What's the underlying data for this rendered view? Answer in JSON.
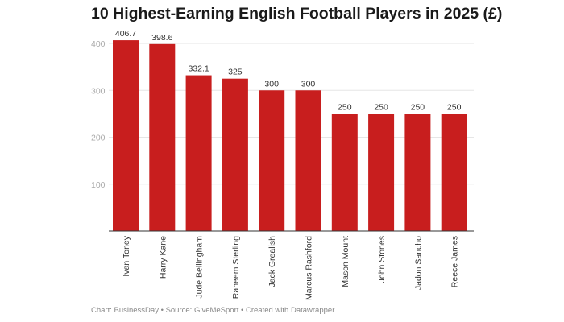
{
  "title": "10 Highest-Earning English Football Players in 2025 (£)",
  "footer": {
    "credit": "Chart: BusinessDay",
    "source": "Source: GiveMeSport",
    "tool": "Created with Datawrapper",
    "separator": " • "
  },
  "colors": {
    "bar": "#c81e1e",
    "grid": "#e6e6e6",
    "axis": "#333333"
  },
  "chart_data": {
    "type": "bar",
    "title": "10 Highest-Earning English Football Players in 2025 (£)",
    "xlabel": "",
    "ylabel": "",
    "categories": [
      "Ivan Toney",
      "Harry Kane",
      "Jude Bellingham",
      "Raheem Sterling",
      "Jack Grealish",
      "Marcus Rashford",
      "Mason Mount",
      "John Stones",
      "Jadon Sancho",
      "Reece James"
    ],
    "values": [
      406.7,
      398.6,
      332.1,
      325,
      300,
      300,
      250,
      250,
      250,
      250
    ],
    "data_labels": [
      "406.7",
      "398.6",
      "332.1",
      "325",
      "300",
      "300",
      "250",
      "250",
      "250",
      "250"
    ],
    "ylim": [
      0,
      400
    ],
    "yticks": [
      100,
      200,
      300,
      400
    ],
    "grid": true,
    "legend": "none"
  }
}
